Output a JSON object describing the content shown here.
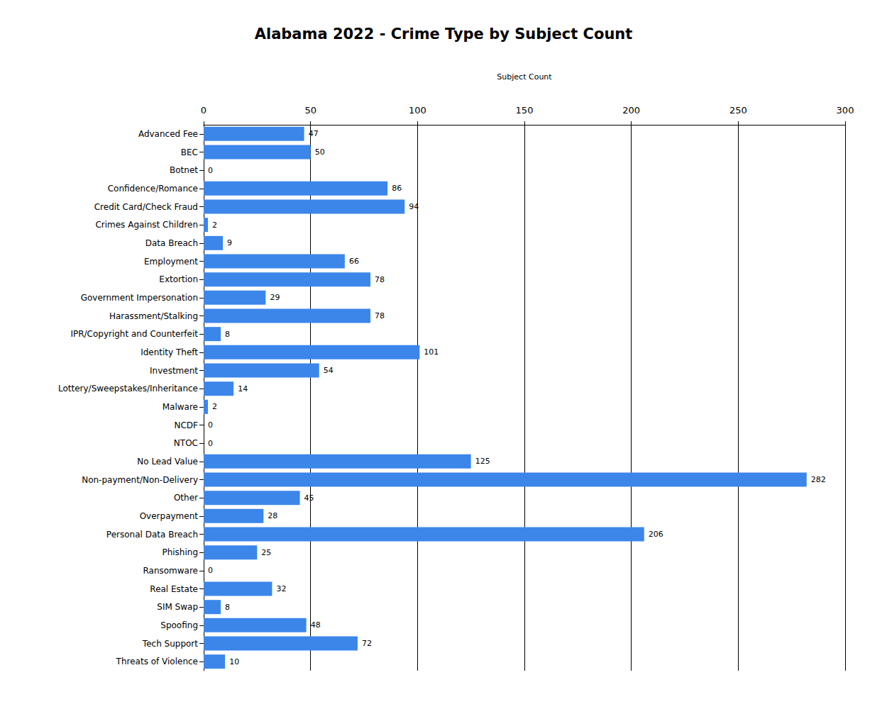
{
  "chart_data": {
    "type": "bar",
    "title": "Alabama 2022 - Crime Type by Subject Count",
    "x_label": "Subject Count",
    "orientation": "horizontal",
    "categories": [
      "Advanced Fee",
      "BEC",
      "Botnet",
      "Confidence/Romance",
      "Credit Card/Check Fraud",
      "Crimes Against Children",
      "Data Breach",
      "Employment",
      "Extortion",
      "Government Impersonation",
      "Harassment/Stalking",
      "IPR/Copyright and Counterfeit",
      "Identity Theft",
      "Investment",
      "Lottery/Sweepstakes/Inheritance",
      "Malware",
      "NCDF",
      "NTOC",
      "No Lead Value",
      "Non-payment/Non-Delivery",
      "Other",
      "Overpayment",
      "Personal Data Breach",
      "Phishing",
      "Ransomware",
      "Real Estate",
      "SIM Swap",
      "Spoofing",
      "Tech Support",
      "Threats of Violence"
    ],
    "values": [
      47,
      50,
      0,
      86,
      94,
      2,
      9,
      66,
      78,
      29,
      78,
      8,
      101,
      54,
      14,
      2,
      0,
      0,
      125,
      282,
      45,
      28,
      206,
      25,
      0,
      32,
      8,
      48,
      72,
      10
    ],
    "color": "#3c86ea",
    "xlim": [
      0,
      300
    ],
    "xticks": [
      0,
      50,
      100,
      150,
      200,
      250,
      300
    ],
    "grid": true,
    "data_labels": true
  }
}
